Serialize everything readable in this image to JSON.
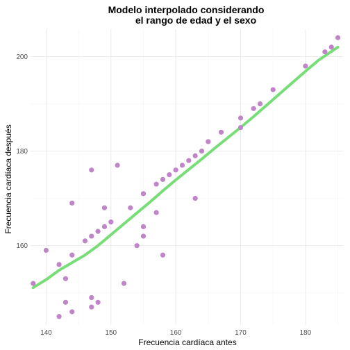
{
  "chart_data": {
    "type": "scatter",
    "title_line1": "Modelo interpolado considerando",
    "title_line2": "el rango de edad y el sexo",
    "xlabel": "Frecuencia cardíaca antes",
    "ylabel": "Frecuencia cardíaca después",
    "xlim": [
      137.6,
      185.8
    ],
    "ylim": [
      143.2,
      205.8
    ],
    "x_ticks": [
      140,
      150,
      160,
      170,
      180
    ],
    "y_ticks": [
      160,
      180,
      200
    ],
    "grid": true,
    "point_color": "#c084c8",
    "line_color": "#77dd77",
    "points": [
      {
        "x": 138,
        "y": 152
      },
      {
        "x": 140,
        "y": 159
      },
      {
        "x": 142,
        "y": 145
      },
      {
        "x": 142,
        "y": 156
      },
      {
        "x": 143,
        "y": 148
      },
      {
        "x": 143,
        "y": 153
      },
      {
        "x": 144,
        "y": 146
      },
      {
        "x": 144,
        "y": 158
      },
      {
        "x": 144,
        "y": 169
      },
      {
        "x": 146,
        "y": 161
      },
      {
        "x": 147,
        "y": 147
      },
      {
        "x": 147,
        "y": 149
      },
      {
        "x": 147,
        "y": 162
      },
      {
        "x": 147,
        "y": 176
      },
      {
        "x": 148,
        "y": 148
      },
      {
        "x": 148,
        "y": 163
      },
      {
        "x": 149,
        "y": 164
      },
      {
        "x": 149,
        "y": 168
      },
      {
        "x": 150,
        "y": 165
      },
      {
        "x": 151,
        "y": 177
      },
      {
        "x": 152,
        "y": 152
      },
      {
        "x": 153,
        "y": 168
      },
      {
        "x": 154,
        "y": 160
      },
      {
        "x": 155,
        "y": 162
      },
      {
        "x": 155,
        "y": 164
      },
      {
        "x": 155,
        "y": 171
      },
      {
        "x": 157,
        "y": 167
      },
      {
        "x": 157,
        "y": 173
      },
      {
        "x": 158,
        "y": 158
      },
      {
        "x": 158,
        "y": 174
      },
      {
        "x": 159,
        "y": 175
      },
      {
        "x": 160,
        "y": 176
      },
      {
        "x": 161,
        "y": 177
      },
      {
        "x": 162,
        "y": 178
      },
      {
        "x": 163,
        "y": 170
      },
      {
        "x": 163,
        "y": 179
      },
      {
        "x": 164,
        "y": 180
      },
      {
        "x": 165,
        "y": 182
      },
      {
        "x": 167,
        "y": 184
      },
      {
        "x": 170,
        "y": 185
      },
      {
        "x": 170,
        "y": 187
      },
      {
        "x": 172,
        "y": 189
      },
      {
        "x": 173,
        "y": 190
      },
      {
        "x": 175,
        "y": 193
      },
      {
        "x": 180,
        "y": 198
      },
      {
        "x": 183,
        "y": 201
      },
      {
        "x": 184,
        "y": 202
      },
      {
        "x": 185,
        "y": 204
      }
    ],
    "fit_line": [
      {
        "x": 138,
        "y": 151.1
      },
      {
        "x": 140,
        "y": 152.8
      },
      {
        "x": 142,
        "y": 154.8
      },
      {
        "x": 144,
        "y": 156.4
      },
      {
        "x": 146,
        "y": 158.0
      },
      {
        "x": 148,
        "y": 160.0
      },
      {
        "x": 150,
        "y": 162.3
      },
      {
        "x": 152,
        "y": 164.6
      },
      {
        "x": 154,
        "y": 166.9
      },
      {
        "x": 156,
        "y": 169.2
      },
      {
        "x": 158,
        "y": 171.6
      },
      {
        "x": 160,
        "y": 173.9
      },
      {
        "x": 162,
        "y": 176.1
      },
      {
        "x": 164,
        "y": 178.3
      },
      {
        "x": 166,
        "y": 180.6
      },
      {
        "x": 168,
        "y": 182.8
      },
      {
        "x": 170,
        "y": 185.0
      },
      {
        "x": 172,
        "y": 187.3
      },
      {
        "x": 174,
        "y": 189.7
      },
      {
        "x": 176,
        "y": 192.1
      },
      {
        "x": 178,
        "y": 194.5
      },
      {
        "x": 180,
        "y": 196.9
      },
      {
        "x": 182,
        "y": 199.2
      },
      {
        "x": 185,
        "y": 202.0
      }
    ]
  }
}
